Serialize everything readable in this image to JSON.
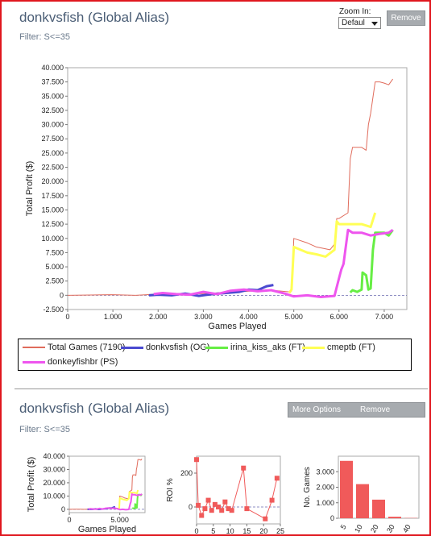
{
  "panel1": {
    "title": "donkvsfish (Global Alias)",
    "filter": "Filter: S<=35",
    "zoom_label": "Zoom In:",
    "zoom_value": "Defaul",
    "remove_label": "Remove"
  },
  "panel2": {
    "title": "donkvsfish (Global Alias)",
    "filter": "Filter: S<=35",
    "more_options_label": "More Options",
    "remove_label": "Remove"
  },
  "colors": {
    "total": "#e06c5c",
    "donkvsfish": "#4a4ad0",
    "irina": "#66ee44",
    "cmeptb": "#ffff55",
    "donkeyfishbr": "#ee55ee",
    "orange": "#ee9a2a",
    "bar": "#f05a5a"
  },
  "chart_data": [
    {
      "type": "line",
      "xlabel": "Games Played",
      "ylabel": "Total Profit ($)",
      "xlim": [
        0,
        7500
      ],
      "ylim": [
        -2500,
        40000
      ],
      "x_ticks": [
        0,
        1000,
        2000,
        3000,
        4000,
        5000,
        6000,
        7000
      ],
      "x_tick_labels": [
        "0",
        "1.000",
        "2.000",
        "3.000",
        "4.000",
        "5.000",
        "6.000",
        "7.000"
      ],
      "y_ticks": [
        -2500,
        0,
        2500,
        5000,
        7500,
        10000,
        12500,
        15000,
        17500,
        20000,
        22500,
        25000,
        27500,
        30000,
        32500,
        35000,
        37500,
        40000
      ],
      "y_tick_labels": [
        "-2.500",
        "0",
        "2.500",
        "5.000",
        "7.500",
        "10.000",
        "12.500",
        "15.000",
        "17.500",
        "20.000",
        "22.500",
        "25.000",
        "27.500",
        "30.000",
        "32.500",
        "35.000",
        "37.500",
        "40.000"
      ],
      "legend_position": "bottom",
      "series": [
        {
          "name": "Total Games (7190)",
          "color_key": "total",
          "x": [
            0,
            500,
            1000,
            1500,
            2000,
            2500,
            3000,
            3500,
            4000,
            4500,
            4900,
            4950,
            5000,
            5300,
            5500,
            5800,
            5900,
            5950,
            6000,
            6200,
            6250,
            6300,
            6500,
            6600,
            6650,
            6700,
            6800,
            6900,
            7000,
            7100,
            7190
          ],
          "y": [
            0,
            50,
            100,
            0,
            200,
            100,
            300,
            500,
            700,
            900,
            600,
            700,
            10000,
            9200,
            8500,
            8000,
            9000,
            13500,
            13500,
            14500,
            24000,
            26000,
            26000,
            25500,
            30000,
            32000,
            37500,
            37500,
            37300,
            37000,
            38000
          ]
        },
        {
          "name": "donkvsfish (OG)",
          "color_key": "donkvsfish",
          "x": [
            1800,
            2000,
            2300,
            2600,
            2900,
            3200,
            3500,
            3800,
            4000,
            4200,
            4400,
            4550
          ],
          "y": [
            0,
            100,
            0,
            300,
            -100,
            200,
            400,
            600,
            1000,
            900,
            1600,
            1800
          ]
        },
        {
          "name": "irina_kiss_aks (FT)",
          "color_key": "irina",
          "x": [
            6250,
            6300,
            6400,
            6500,
            6520,
            6600,
            6650,
            6700,
            6750,
            6800,
            6900,
            7000,
            7100,
            7190
          ],
          "y": [
            500,
            900,
            600,
            1000,
            4000,
            3500,
            1000,
            1200,
            8000,
            11000,
            11000,
            11000,
            10500,
            11500
          ]
        },
        {
          "name": "cmeptb (FT)",
          "color_key": "cmeptb",
          "x": [
            4900,
            4950,
            5000,
            5300,
            5500,
            5700,
            5900,
            5950,
            6000,
            6200,
            6500,
            6700,
            6800
          ],
          "y": [
            400,
            1000,
            8500,
            7500,
            7200,
            6800,
            8000,
            13000,
            12500,
            12500,
            12500,
            12000,
            14500
          ]
        },
        {
          "name": "donkeyfishbr (PS)",
          "color_key": "donkeyfishbr",
          "x": [
            1900,
            2100,
            2400,
            2700,
            3000,
            3300,
            3600,
            3900,
            4200,
            4500,
            4800,
            5000,
            5300,
            5600,
            5900,
            6000,
            6050,
            6100,
            6200,
            6300,
            6500,
            6700,
            6900,
            7100,
            7190
          ],
          "y": [
            200,
            400,
            200,
            100,
            600,
            200,
            800,
            1000,
            700,
            900,
            300,
            -200,
            0,
            -300,
            -100,
            3000,
            4500,
            5500,
            11500,
            11000,
            11000,
            10500,
            10800,
            11000,
            11500
          ]
        }
      ]
    },
    {
      "type": "line",
      "xlabel": "Games Played",
      "ylabel": "Total Profit ($)",
      "xlim": [
        0,
        7500
      ],
      "ylim": [
        -2500,
        40000
      ],
      "x_ticks": [
        0,
        5000
      ],
      "x_tick_labels": [
        "0",
        "5.000"
      ],
      "y_ticks": [
        0,
        10000,
        20000,
        30000,
        40000
      ],
      "y_tick_labels": [
        "0",
        "10.000",
        "20.000",
        "30.000",
        "40.000"
      ]
    },
    {
      "type": "scatter",
      "ylabel": "ROI %",
      "xlim": [
        0,
        25
      ],
      "ylim": [
        -100,
        300
      ],
      "y_ticks": [
        0,
        200
      ],
      "y_tick_labels": [
        "0",
        "200"
      ],
      "x_ticks": [
        0,
        5,
        10,
        15,
        20,
        25
      ],
      "x_tick_labels": [
        "0",
        "5",
        "10",
        "15",
        "20",
        "25"
      ],
      "x": [
        0,
        0.5,
        1.5,
        2.5,
        3.5,
        4.5,
        5.5,
        6.5,
        7.5,
        8.5,
        9.5,
        10.5,
        14,
        15,
        20.5,
        22.5,
        24
      ],
      "y": [
        280,
        10,
        -50,
        -10,
        40,
        -20,
        15,
        0,
        -20,
        30,
        -10,
        -20,
        230,
        -10,
        -70,
        40,
        170
      ]
    },
    {
      "type": "bar",
      "ylabel": "No. Games",
      "categories": [
        "5",
        "10",
        "20",
        "30",
        "40"
      ],
      "values": [
        3700,
        2200,
        1200,
        100,
        20
      ],
      "ylim": [
        0,
        4000
      ],
      "y_ticks": [
        0,
        1000,
        2000,
        3000
      ],
      "y_tick_labels": [
        "0",
        "1.000",
        "2.000",
        "3.000"
      ]
    }
  ]
}
